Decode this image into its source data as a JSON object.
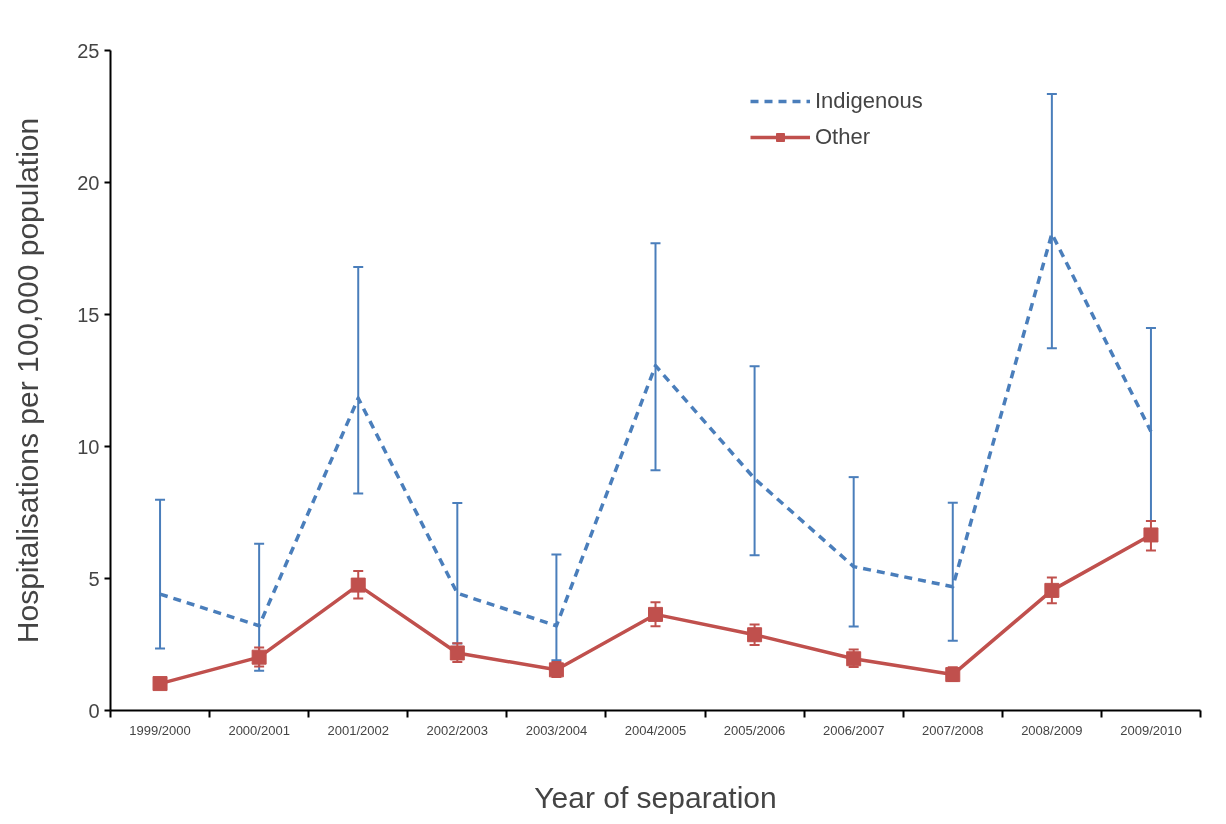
{
  "chart_data": {
    "type": "line",
    "xlabel": "Year of separation",
    "ylabel": "Hospitalisations per 100,000 population",
    "categories": [
      "1999/2000",
      "2000/2001",
      "2001/2002",
      "2002/2003",
      "2003/2004",
      "2004/2005",
      "2005/2006",
      "2006/2007",
      "2007/2008",
      "2008/2009",
      "2009/2010"
    ],
    "ylim": [
      0,
      25
    ],
    "yticks": [
      0,
      5,
      10,
      15,
      20,
      25
    ],
    "grid": false,
    "legend": "top right",
    "series": [
      {
        "name": "Indigenous",
        "color": "#4a7ebb",
        "line_style": "dashed",
        "marker": "none",
        "values": [
          4.41,
          3.21,
          11.83,
          4.44,
          3.21,
          13.06,
          8.78,
          5.45,
          4.69,
          18.06,
          10.57
        ],
        "errors": [
          [
            2.35,
            7.98
          ],
          [
            1.51,
            6.32
          ],
          [
            8.22,
            16.8
          ],
          [
            2.54,
            7.86
          ],
          [
            1.9,
            5.91
          ],
          [
            9.1,
            17.7
          ],
          [
            5.88,
            13.04
          ],
          [
            3.18,
            8.84
          ],
          [
            2.64,
            7.87
          ],
          [
            13.72,
            23.35
          ],
          [
            7.18,
            14.49
          ]
        ]
      },
      {
        "name": "Other",
        "color": "#c0504d",
        "line_style": "solid",
        "marker": "square",
        "values": [
          1.02,
          2.02,
          4.75,
          2.18,
          1.54,
          3.64,
          2.87,
          1.96,
          1.36,
          4.55,
          6.65
        ],
        "errors": [
          null,
          [
            1.67,
            2.39
          ],
          [
            4.24,
            5.28
          ],
          [
            1.84,
            2.55
          ],
          [
            1.27,
            1.84
          ],
          [
            3.19,
            4.1
          ],
          [
            2.48,
            3.26
          ],
          [
            1.65,
            2.31
          ],
          [
            1.12,
            1.64
          ],
          [
            4.06,
            5.04
          ],
          [
            6.06,
            7.18
          ]
        ]
      }
    ]
  }
}
